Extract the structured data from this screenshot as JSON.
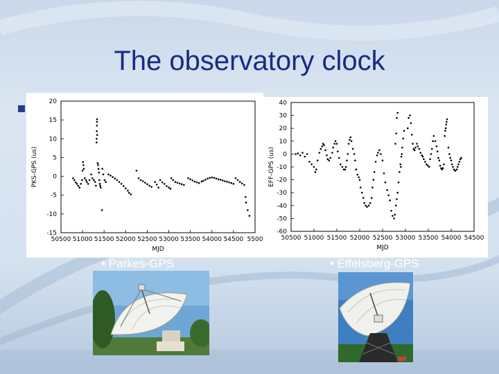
{
  "slide": {
    "title": "The observatory clock",
    "caption_left": "• Parkes-GPS",
    "caption_right": "• Effelsberg-GPS"
  },
  "colors": {
    "title": "#1a2a80",
    "points": "#000000",
    "background": "#d4e1ef"
  },
  "photos": [
    {
      "name": "parkes-radio-telescope-photo"
    },
    {
      "name": "effelsberg-radio-telescope-photo"
    }
  ],
  "chart_data": [
    {
      "type": "scatter",
      "title": "",
      "xlabel": "MJD",
      "ylabel": "PKS-GPS (us)",
      "xlim": [
        50500,
        55000
      ],
      "ylim": [
        -15,
        20
      ],
      "xticks": [
        "50500",
        "51000",
        "51500",
        "52000",
        "52500",
        "53000",
        "53500",
        "54000",
        "54500",
        "5500"
      ],
      "yticks": [
        "20",
        "15",
        "10",
        "5",
        "0",
        "-5",
        "-10",
        "-15"
      ],
      "points": [
        [
          50780,
          -0.5
        ],
        [
          50810,
          -1
        ],
        [
          50840,
          -1.6
        ],
        [
          50870,
          -2
        ],
        [
          50900,
          -2.5
        ],
        [
          50930,
          -3
        ],
        [
          50960,
          -2
        ],
        [
          50990,
          -1
        ],
        [
          51000,
          1.5
        ],
        [
          51010,
          3.8
        ],
        [
          51020,
          3
        ],
        [
          51030,
          2
        ],
        [
          51050,
          -0.5
        ],
        [
          51080,
          -1
        ],
        [
          51100,
          -1.5
        ],
        [
          51130,
          -2
        ],
        [
          51160,
          -1
        ],
        [
          51200,
          0.5
        ],
        [
          51230,
          -0.5
        ],
        [
          51260,
          -1
        ],
        [
          51290,
          -1.5
        ],
        [
          51310,
          -2.5
        ],
        [
          51325,
          9
        ],
        [
          51327,
          10
        ],
        [
          51330,
          12
        ],
        [
          51332,
          13.5
        ],
        [
          51335,
          14.5
        ],
        [
          51337,
          15.2
        ],
        [
          51340,
          11
        ],
        [
          51350,
          3.5
        ],
        [
          51360,
          3
        ],
        [
          51370,
          2
        ],
        [
          51380,
          1
        ],
        [
          51390,
          -1
        ],
        [
          51400,
          -2
        ],
        [
          51410,
          -2.5
        ],
        [
          51420,
          -3
        ],
        [
          51450,
          -9
        ],
        [
          51460,
          2
        ],
        [
          51480,
          0.5
        ],
        [
          51510,
          -1
        ],
        [
          51540,
          -1.5
        ],
        [
          51600,
          0.5
        ],
        [
          51650,
          0.2
        ],
        [
          51700,
          -0.2
        ],
        [
          51750,
          -0.6
        ],
        [
          51800,
          -1
        ],
        [
          51850,
          -1.5
        ],
        [
          51900,
          -2
        ],
        [
          51950,
          -2.6
        ],
        [
          52000,
          -3.2
        ],
        [
          52050,
          -3.8
        ],
        [
          52080,
          -4.4
        ],
        [
          52120,
          -4.8
        ],
        [
          52250,
          1.5
        ],
        [
          52300,
          -0.5
        ],
        [
          52350,
          -1
        ],
        [
          52400,
          -1.3
        ],
        [
          52450,
          -1.7
        ],
        [
          52500,
          -2.1
        ],
        [
          52550,
          -2.5
        ],
        [
          52600,
          -2.8
        ],
        [
          52680,
          -1.5
        ],
        [
          52720,
          -2.2
        ],
        [
          52760,
          -3
        ],
        [
          52800,
          -1
        ],
        [
          52850,
          -1.6
        ],
        [
          52900,
          -2
        ],
        [
          52950,
          -2.6
        ],
        [
          53000,
          -3
        ],
        [
          53040,
          -3.3
        ],
        [
          53060,
          -0.5
        ],
        [
          53100,
          -1
        ],
        [
          53150,
          -1.5
        ],
        [
          53200,
          -1.7
        ],
        [
          53250,
          -1.9
        ],
        [
          53300,
          -2.1
        ],
        [
          53350,
          -2.3
        ],
        [
          53450,
          -0.5
        ],
        [
          53500,
          -0.8
        ],
        [
          53550,
          -1.1
        ],
        [
          53600,
          -1.4
        ],
        [
          53650,
          -1.6
        ],
        [
          53700,
          -1.8
        ],
        [
          53760,
          -1.4
        ],
        [
          53800,
          -1.2
        ],
        [
          53850,
          -0.9
        ],
        [
          53900,
          -0.6
        ],
        [
          53950,
          -0.4
        ],
        [
          54000,
          -0.3
        ],
        [
          54050,
          -0.4
        ],
        [
          54100,
          -0.6
        ],
        [
          54150,
          -0.8
        ],
        [
          54200,
          -0.9
        ],
        [
          54250,
          -1.1
        ],
        [
          54300,
          -1.3
        ],
        [
          54350,
          -1.4
        ],
        [
          54400,
          -1.6
        ],
        [
          54450,
          -1.8
        ],
        [
          54500,
          -2
        ],
        [
          54550,
          -0.5
        ],
        [
          54600,
          -1
        ],
        [
          54650,
          -1.5
        ],
        [
          54700,
          -1.9
        ],
        [
          54750,
          -2.3
        ],
        [
          54780,
          -5.5
        ],
        [
          54790,
          -7
        ],
        [
          54830,
          -9
        ],
        [
          54870,
          -10.5
        ]
      ]
    },
    {
      "type": "scatter",
      "title": "",
      "xlabel": "MJD",
      "ylabel": "EFF-GPS (us)",
      "xlim": [
        50500,
        54500
      ],
      "ylim": [
        -60,
        40
      ],
      "xticks": [
        "50500",
        "51000",
        "51500",
        "52000",
        "52500",
        "53000",
        "53500",
        "54000",
        "54500"
      ],
      "yticks": [
        "40",
        "30",
        "20",
        "10",
        "0",
        "-10",
        "-20",
        "-30",
        "-40",
        "-50",
        "-60"
      ],
      "points": [
        [
          50600,
          0
        ],
        [
          50650,
          0.5
        ],
        [
          50700,
          -1
        ],
        [
          50750,
          1
        ],
        [
          50800,
          -2
        ],
        [
          50850,
          0
        ],
        [
          50900,
          -6
        ],
        [
          50950,
          -8
        ],
        [
          51000,
          -10
        ],
        [
          51030,
          -14
        ],
        [
          51050,
          -12
        ],
        [
          51080,
          -5
        ],
        [
          51120,
          1
        ],
        [
          51150,
          4
        ],
        [
          51180,
          6
        ],
        [
          51200,
          8
        ],
        [
          51220,
          7
        ],
        [
          51250,
          3
        ],
        [
          51280,
          -1
        ],
        [
          51300,
          -4
        ],
        [
          51330,
          -5
        ],
        [
          51360,
          -3
        ],
        [
          51400,
          1
        ],
        [
          51420,
          5
        ],
        [
          51450,
          8
        ],
        [
          51470,
          10
        ],
        [
          51500,
          8
        ],
        [
          51520,
          2
        ],
        [
          51550,
          -3
        ],
        [
          51580,
          -8
        ],
        [
          51620,
          -10
        ],
        [
          51650,
          -12
        ],
        [
          51680,
          -12
        ],
        [
          51700,
          -10
        ],
        [
          51720,
          -5
        ],
        [
          51740,
          0
        ],
        [
          51760,
          8
        ],
        [
          51780,
          11
        ],
        [
          51800,
          13
        ],
        [
          51820,
          10
        ],
        [
          51850,
          4
        ],
        [
          51880,
          0
        ],
        [
          51900,
          -5
        ],
        [
          51920,
          -12
        ],
        [
          51950,
          -16
        ],
        [
          51980,
          -18
        ],
        [
          52000,
          -20
        ],
        [
          52020,
          -26
        ],
        [
          52050,
          -30
        ],
        [
          52080,
          -34
        ],
        [
          52100,
          -38
        ],
        [
          52130,
          -40
        ],
        [
          52160,
          -41
        ],
        [
          52200,
          -40
        ],
        [
          52230,
          -38
        ],
        [
          52260,
          -34
        ],
        [
          52280,
          -26
        ],
        [
          52300,
          -20
        ],
        [
          52320,
          -14
        ],
        [
          52350,
          -6
        ],
        [
          52380,
          -1
        ],
        [
          52400,
          1
        ],
        [
          52430,
          3
        ],
        [
          52460,
          0
        ],
        [
          52500,
          -5
        ],
        [
          52530,
          -15
        ],
        [
          52560,
          -22
        ],
        [
          52600,
          -28
        ],
        [
          52630,
          -32
        ],
        [
          52660,
          -36
        ],
        [
          52690,
          -44
        ],
        [
          52720,
          -48
        ],
        [
          52750,
          -50
        ],
        [
          52770,
          -47
        ],
        [
          52790,
          -40
        ],
        [
          52810,
          -35
        ],
        [
          52830,
          -30
        ],
        [
          52850,
          -22
        ],
        [
          52870,
          -14
        ],
        [
          52890,
          -8
        ],
        [
          52910,
          -2
        ],
        [
          52930,
          5
        ],
        [
          52950,
          12
        ],
        [
          52970,
          18
        ],
        [
          52780,
          8
        ],
        [
          52800,
          16
        ],
        [
          52810,
          28
        ],
        [
          52830,
          32
        ],
        [
          52900,
          -10
        ],
        [
          52920,
          0
        ],
        [
          53050,
          20
        ],
        [
          53070,
          28
        ],
        [
          53100,
          30
        ],
        [
          53120,
          24
        ],
        [
          53140,
          15
        ],
        [
          53160,
          8
        ],
        [
          53180,
          4
        ],
        [
          53200,
          3
        ],
        [
          53220,
          5
        ],
        [
          53250,
          8
        ],
        [
          53270,
          6
        ],
        [
          53300,
          4
        ],
        [
          53330,
          1
        ],
        [
          53360,
          -1
        ],
        [
          53380,
          -2
        ],
        [
          53400,
          -4
        ],
        [
          53430,
          -6
        ],
        [
          53460,
          -8
        ],
        [
          53490,
          -9
        ],
        [
          53520,
          -10
        ],
        [
          53540,
          -4
        ],
        [
          53560,
          0
        ],
        [
          53580,
          4
        ],
        [
          53600,
          10
        ],
        [
          53620,
          14
        ],
        [
          53650,
          10
        ],
        [
          53680,
          6
        ],
        [
          53700,
          2
        ],
        [
          53720,
          -3
        ],
        [
          53740,
          -5
        ],
        [
          53760,
          -9
        ],
        [
          53780,
          -11
        ],
        [
          53800,
          -12
        ],
        [
          53820,
          -11
        ],
        [
          53840,
          -8
        ],
        [
          53860,
          14
        ],
        [
          53870,
          18
        ],
        [
          53880,
          20
        ],
        [
          53890,
          23
        ],
        [
          53900,
          25
        ],
        [
          53910,
          27
        ],
        [
          53940,
          5
        ],
        [
          53960,
          0
        ],
        [
          53980,
          -3
        ],
        [
          54000,
          -5
        ],
        [
          54020,
          -8
        ],
        [
          54040,
          -10
        ],
        [
          54060,
          -12
        ],
        [
          54090,
          -13
        ],
        [
          54120,
          -12
        ],
        [
          54140,
          -10
        ],
        [
          54160,
          -8
        ],
        [
          54180,
          -6
        ],
        [
          54200,
          -4
        ],
        [
          54220,
          -3
        ]
      ]
    }
  ]
}
